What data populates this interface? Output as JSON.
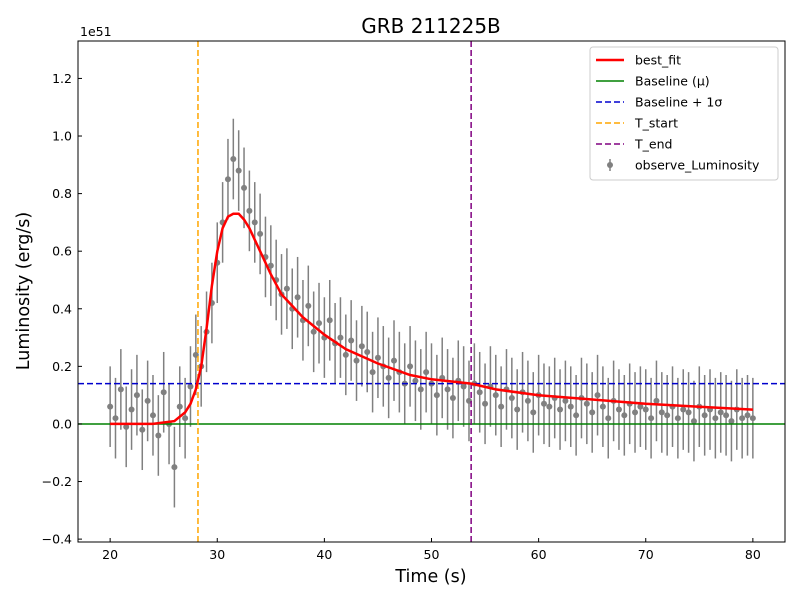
{
  "chart_data": {
    "type": "scatter",
    "title": "GRB 211225B",
    "xlabel": "Time (s)",
    "ylabel": "Luminosity (erg/s)",
    "y_offset_label": "1e51",
    "xlim": [
      17,
      83
    ],
    "ylim": [
      -0.41,
      1.33
    ],
    "xticks": [
      20,
      30,
      40,
      50,
      60,
      70,
      80
    ],
    "yticks": [
      -0.4,
      -0.2,
      0.0,
      0.2,
      0.4,
      0.6,
      0.8,
      1.0,
      1.2
    ],
    "xtick_labels": [
      "20",
      "30",
      "40",
      "50",
      "60",
      "70",
      "80"
    ],
    "ytick_labels": [
      "−0.4",
      "−0.2",
      "0.0",
      "0.2",
      "0.4",
      "0.6",
      "0.8",
      "1.0",
      "1.2"
    ],
    "grid": false,
    "legend_position": "upper-right",
    "legend": [
      "best_fit",
      "Baseline (μ)",
      "Baseline + 1σ",
      "T_start",
      "T_end",
      "observe_Luminosity"
    ],
    "colors": {
      "best_fit": "#ff0000",
      "baseline": "#008000",
      "baseline_sigma": "#0000cd",
      "t_start": "#ffa500",
      "t_end": "#800080",
      "observed": "#808080"
    },
    "baseline_mu": 0.0,
    "baseline_plus_1sigma": 0.14,
    "t_start": 28.2,
    "t_end": 53.7,
    "best_fit": {
      "x": [
        20,
        24,
        26,
        27,
        27.5,
        28,
        28.5,
        29,
        29.5,
        30,
        30.5,
        31,
        31.5,
        32,
        32.5,
        33,
        34,
        35,
        36,
        38,
        40,
        42,
        45,
        48,
        50,
        53.7,
        56,
        60,
        65,
        70,
        75,
        80
      ],
      "y": [
        0.0,
        0.0,
        0.01,
        0.04,
        0.07,
        0.12,
        0.2,
        0.33,
        0.48,
        0.6,
        0.68,
        0.72,
        0.73,
        0.73,
        0.71,
        0.68,
        0.6,
        0.52,
        0.45,
        0.37,
        0.31,
        0.26,
        0.21,
        0.17,
        0.155,
        0.14,
        0.12,
        0.1,
        0.085,
        0.07,
        0.06,
        0.05
      ]
    },
    "observed": {
      "x": [
        20.0,
        20.5,
        21.0,
        21.5,
        22.0,
        22.5,
        23.0,
        23.5,
        24.0,
        24.5,
        25.0,
        25.5,
        26.0,
        26.5,
        27.0,
        27.5,
        28.0,
        28.5,
        29.0,
        29.5,
        30.0,
        30.5,
        31.0,
        31.5,
        32.0,
        32.5,
        33.0,
        33.5,
        34.0,
        34.5,
        35.0,
        35.5,
        36.0,
        36.5,
        37.0,
        37.5,
        38.0,
        38.5,
        39.0,
        39.5,
        40.0,
        40.5,
        41.0,
        41.5,
        42.0,
        42.5,
        43.0,
        43.5,
        44.0,
        44.5,
        45.0,
        45.5,
        46.0,
        46.5,
        47.0,
        47.5,
        48.0,
        48.5,
        49.0,
        49.5,
        50.0,
        50.5,
        51.0,
        51.5,
        52.0,
        52.5,
        53.0,
        53.5,
        54.0,
        54.5,
        55.0,
        55.5,
        56.0,
        56.5,
        57.0,
        57.5,
        58.0,
        58.5,
        59.0,
        59.5,
        60.0,
        60.5,
        61.0,
        61.5,
        62.0,
        62.5,
        63.0,
        63.5,
        64.0,
        64.5,
        65.0,
        65.5,
        66.0,
        66.5,
        67.0,
        67.5,
        68.0,
        68.5,
        69.0,
        69.5,
        70.0,
        70.5,
        71.0,
        71.5,
        72.0,
        72.5,
        73.0,
        73.5,
        74.0,
        74.5,
        75.0,
        75.5,
        76.0,
        76.5,
        77.0,
        77.5,
        78.0,
        78.5,
        79.0,
        79.5,
        80.0
      ],
      "y": [
        0.06,
        0.02,
        0.12,
        -0.01,
        0.05,
        0.1,
        -0.02,
        0.08,
        0.03,
        -0.04,
        0.11,
        0.0,
        -0.15,
        0.06,
        0.02,
        0.13,
        0.24,
        0.2,
        0.32,
        0.42,
        0.56,
        0.7,
        0.85,
        0.92,
        0.88,
        0.82,
        0.74,
        0.7,
        0.66,
        0.58,
        0.55,
        0.5,
        0.45,
        0.47,
        0.4,
        0.44,
        0.36,
        0.41,
        0.32,
        0.35,
        0.3,
        0.36,
        0.28,
        0.3,
        0.24,
        0.29,
        0.22,
        0.27,
        0.25,
        0.18,
        0.23,
        0.2,
        0.16,
        0.22,
        0.18,
        0.14,
        0.2,
        0.15,
        0.12,
        0.18,
        0.14,
        0.1,
        0.16,
        0.12,
        0.09,
        0.15,
        0.13,
        0.08,
        0.14,
        0.11,
        0.07,
        0.13,
        0.1,
        0.06,
        0.12,
        0.09,
        0.05,
        0.11,
        0.08,
        0.04,
        0.1,
        0.07,
        0.06,
        0.09,
        0.05,
        0.08,
        0.06,
        0.03,
        0.09,
        0.07,
        0.04,
        0.1,
        0.06,
        0.02,
        0.08,
        0.05,
        0.03,
        0.07,
        0.04,
        0.06,
        0.05,
        0.02,
        0.08,
        0.04,
        0.03,
        0.06,
        0.02,
        0.05,
        0.04,
        0.01,
        0.06,
        0.03,
        0.05,
        0.02,
        0.04,
        0.03,
        0.01,
        0.05,
        0.02,
        0.03,
        0.02
      ],
      "yerr": 0.14
    }
  }
}
